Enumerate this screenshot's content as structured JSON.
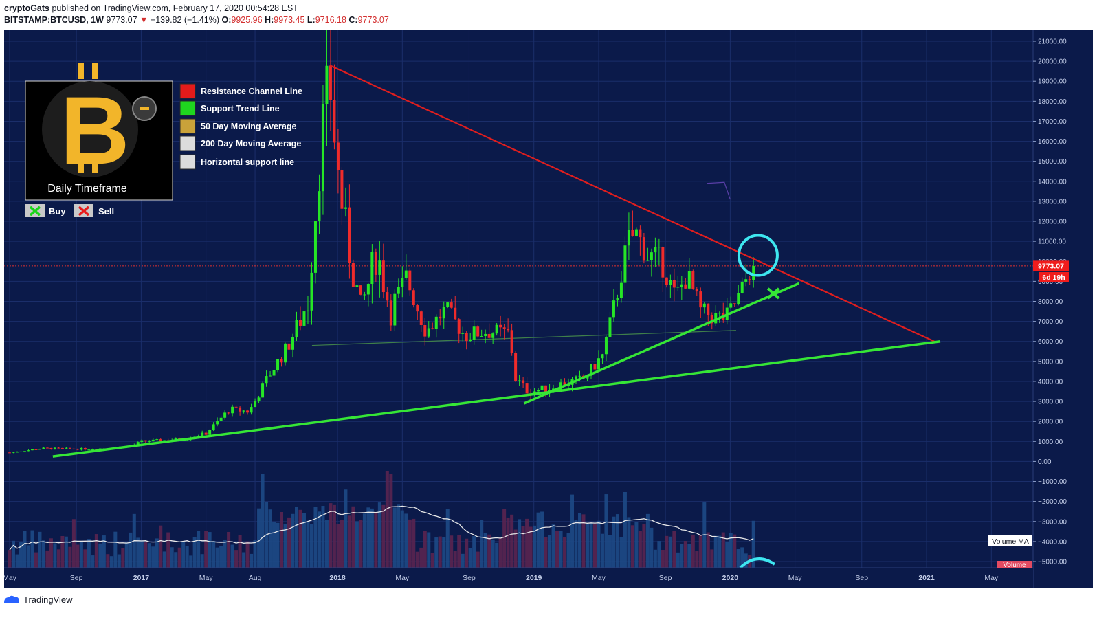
{
  "header": {
    "author": "cryptoGats",
    "published_text": "published on TradingView.com, February 17, 2020 00:54:28 EST",
    "symbol": "BITSTAMP:BTCUSD, 1W",
    "last": "9773.07",
    "change": "−139.82 (−1.41%)",
    "open_label": "O:",
    "open": "9925.96",
    "high_label": "H:",
    "high": "9973.45",
    "low_label": "L:",
    "low": "9716.18",
    "close_label": "C:",
    "close": "9773.07"
  },
  "colors": {
    "background": "#0b1a4a",
    "grid": "#1b2e6a",
    "up": "#26e626",
    "down": "#ef2b2b",
    "resistance": "#e01e1e",
    "support": "#36e636",
    "ma": "#e8e8e8",
    "annotation": "#3ee6f0"
  },
  "legend": {
    "badge_title": "Daily Timeframe",
    "items": [
      {
        "label": "Resistance Channel Line",
        "color": "#e31b1b"
      },
      {
        "label": "Support Trend Line",
        "color": "#1fd61f"
      },
      {
        "label": "50 Day Moving Average",
        "color": "#c9a23a"
      },
      {
        "label": "200 Day Moving Average",
        "color": "#dcdcdc"
      },
      {
        "label": "Horizontal support line",
        "color": "#dcdcdc"
      }
    ],
    "buy_label": "Buy",
    "sell_label": "Sell"
  },
  "price_badge": {
    "value": "9773.07",
    "countdown": "6d 19h"
  },
  "volume_ma_label": "Volume MA",
  "volume_label": "Volume",
  "footer": {
    "brand": "TradingView"
  },
  "chart_data": {
    "type": "candlestick",
    "x_ticks": [
      "May",
      "Sep",
      "2017",
      "May",
      "Aug",
      "2018",
      "May",
      "Sep",
      "2019",
      "May",
      "Sep",
      "2020",
      "May",
      "Sep",
      "2021",
      "May"
    ],
    "y_ticks": [
      "21000.00",
      "20000.00",
      "19000.00",
      "18000.00",
      "17000.00",
      "16000.00",
      "15000.00",
      "14000.00",
      "13000.00",
      "12000.00",
      "11000.00",
      "10000.00",
      "9000.00",
      "8000.00",
      "7000.00",
      "6000.00",
      "5000.00",
      "4000.00",
      "3000.00",
      "2000.00",
      "1000.00",
      "0.00",
      "−1000.00",
      "−2000.00",
      "−3000.00",
      "−4000.00",
      "−5000.00"
    ],
    "ylim": [
      -5200,
      21400
    ],
    "price_path": [
      [
        2016.33,
        450
      ],
      [
        2016.5,
        650
      ],
      [
        2016.75,
        620
      ],
      [
        2016.95,
        760
      ],
      [
        2017.0,
        1000
      ],
      [
        2017.2,
        1100
      ],
      [
        2017.33,
        1400
      ],
      [
        2017.45,
        2600
      ],
      [
        2017.55,
        2500
      ],
      [
        2017.65,
        4300
      ],
      [
        2017.75,
        5800
      ],
      [
        2017.85,
        8000
      ],
      [
        2017.92,
        16500
      ],
      [
        2017.96,
        19000
      ],
      [
        2018.0,
        14500
      ],
      [
        2018.05,
        11000
      ],
      [
        2018.12,
        7500
      ],
      [
        2018.2,
        10500
      ],
      [
        2018.27,
        7500
      ],
      [
        2018.35,
        9200
      ],
      [
        2018.45,
        6500
      ],
      [
        2018.55,
        7600
      ],
      [
        2018.65,
        6300
      ],
      [
        2018.75,
        6500
      ],
      [
        2018.88,
        6400
      ],
      [
        2018.9,
        4200
      ],
      [
        2018.97,
        3500
      ],
      [
        2019.05,
        3600
      ],
      [
        2019.15,
        3900
      ],
      [
        2019.25,
        4100
      ],
      [
        2019.35,
        5300
      ],
      [
        2019.42,
        8200
      ],
      [
        2019.48,
        11000
      ],
      [
        2019.52,
        11400
      ],
      [
        2019.58,
        10300
      ],
      [
        2019.65,
        10000
      ],
      [
        2019.72,
        8200
      ],
      [
        2019.78,
        9300
      ],
      [
        2019.85,
        7500
      ],
      [
        2019.92,
        7200
      ],
      [
        2019.98,
        7200
      ],
      [
        2020.05,
        8300
      ],
      [
        2020.1,
        9600
      ],
      [
        2020.13,
        9773
      ]
    ],
    "resistance_line": [
      [
        2017.96,
        19800
      ],
      [
        2021.05,
        5950
      ]
    ],
    "support_line_long": [
      [
        2016.55,
        250
      ],
      [
        2021.07,
        6000
      ]
    ],
    "support_line_short": [
      [
        2018.95,
        2900
      ],
      [
        2020.35,
        8900
      ]
    ],
    "horizontal_support": [
      [
        2017.87,
        5800
      ],
      [
        2020.03,
        6550
      ]
    ],
    "last_price": 9773.07,
    "sell_marker": [
      2020.22,
      8400
    ]
  }
}
